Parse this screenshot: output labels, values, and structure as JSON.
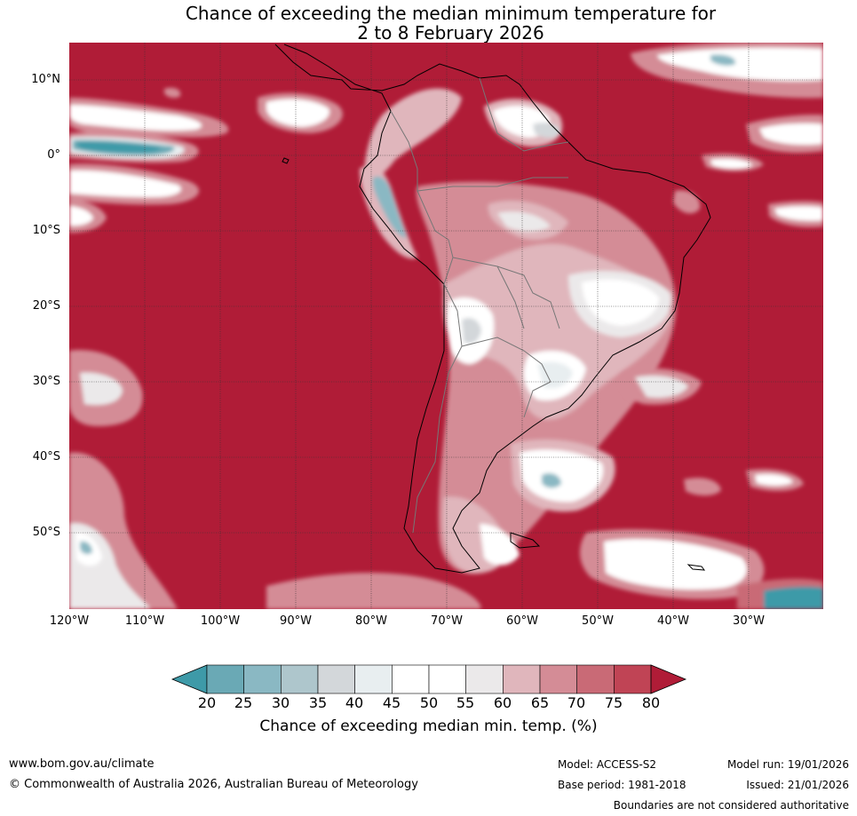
{
  "title": {
    "line1": "Chance of exceeding the median minimum temperature for",
    "line2": "2 to 8 February 2026"
  },
  "map": {
    "lat_labels": [
      "10°N",
      "0°",
      "10°S",
      "20°S",
      "30°S",
      "40°S",
      "50°S"
    ],
    "lon_labels": [
      "120°W",
      "110°W",
      "100°W",
      "90°W",
      "80°W",
      "70°W",
      "60°W",
      "50°W",
      "40°W",
      "30°W"
    ],
    "extent": {
      "lon_min": -120,
      "lon_max": -20,
      "lat_min": -60,
      "lat_max": 15
    }
  },
  "colorbar": {
    "ticks": [
      "20",
      "25",
      "30",
      "35",
      "40",
      "45",
      "50",
      "55",
      "60",
      "65",
      "70",
      "75",
      "80"
    ],
    "colors": [
      "#3e9aa8",
      "#6aa9b5",
      "#8ab8c3",
      "#aec6cc",
      "#d3d7da",
      "#e8eef0",
      "#ffffff",
      "#ffffff",
      "#ebe9ea",
      "#e0b6bc",
      "#d48c96",
      "#c96a76",
      "#c04455",
      "#b01c37"
    ],
    "label": "Chance of exceeding median min. temp. (%)"
  },
  "footer": {
    "url": "www.bom.gov.au/climate",
    "copyright": "© Commonwealth of Australia 2026, Australian Bureau of Meteorology",
    "model": "Model: ACCESS-S2",
    "base_period": "Base period: 1981-2018",
    "model_run": "Model run: 19/01/2026",
    "issued": "Issued: 21/01/2026",
    "disclaimer": "Boundaries are not considered authoritative"
  }
}
